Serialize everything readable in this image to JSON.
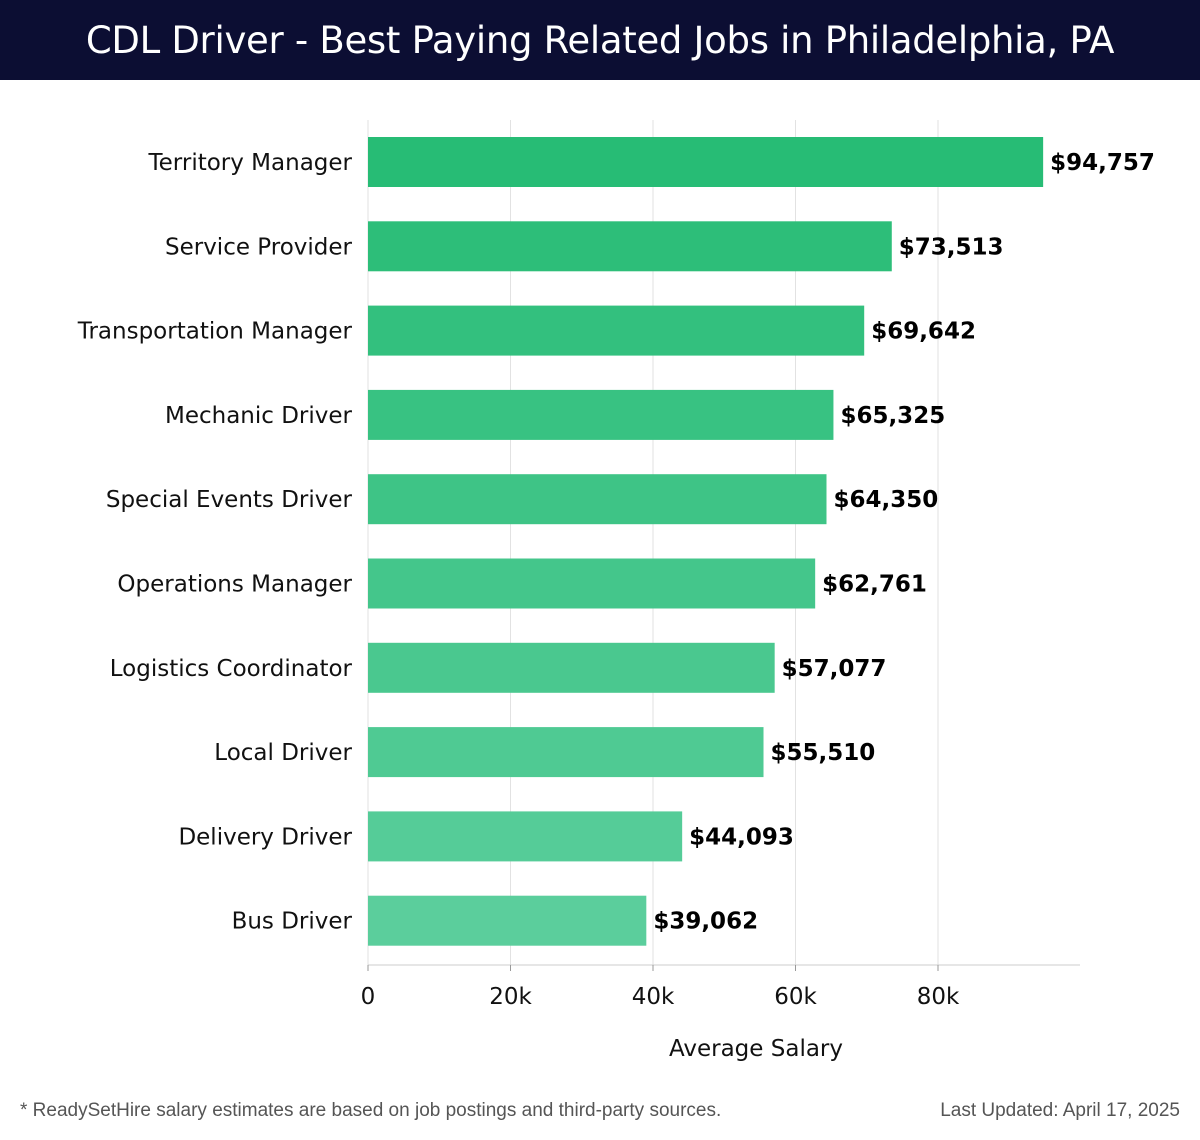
{
  "header": {
    "title": "CDL Driver - Best Paying Related Jobs in Philadelphia, PA"
  },
  "chart_data": {
    "type": "bar",
    "orientation": "horizontal",
    "categories": [
      "Territory Manager",
      "Service Provider",
      "Transportation Manager",
      "Mechanic Driver",
      "Special Events Driver",
      "Operations Manager",
      "Logistics Coordinator",
      "Local Driver",
      "Delivery Driver",
      "Bus Driver"
    ],
    "values": [
      94757,
      73513,
      69642,
      65325,
      64350,
      62761,
      57077,
      55510,
      44093,
      39062
    ],
    "value_labels": [
      "$94,757",
      "$73,513",
      "$69,642",
      "$65,325",
      "$64,350",
      "$62,761",
      "$57,077",
      "$55,510",
      "$44,093",
      "$39,062"
    ],
    "xlabel": "Average Salary",
    "ylabel": "",
    "xlim": [
      0,
      100000
    ],
    "xticks": [
      0,
      20000,
      40000,
      60000,
      80000
    ],
    "xtick_labels": [
      "0",
      "20k",
      "40k",
      "60k",
      "80k"
    ],
    "grid": "vertical",
    "colors": {
      "bar_dark": "#27bc75",
      "bar_light": "#5bce9c",
      "grid": "#e2e2e2",
      "axis": "#cccccc"
    }
  },
  "footer": {
    "note": "* ReadySetHire salary estimates are based on job postings and third-party sources.",
    "updated": "Last Updated: April 17, 2025"
  }
}
